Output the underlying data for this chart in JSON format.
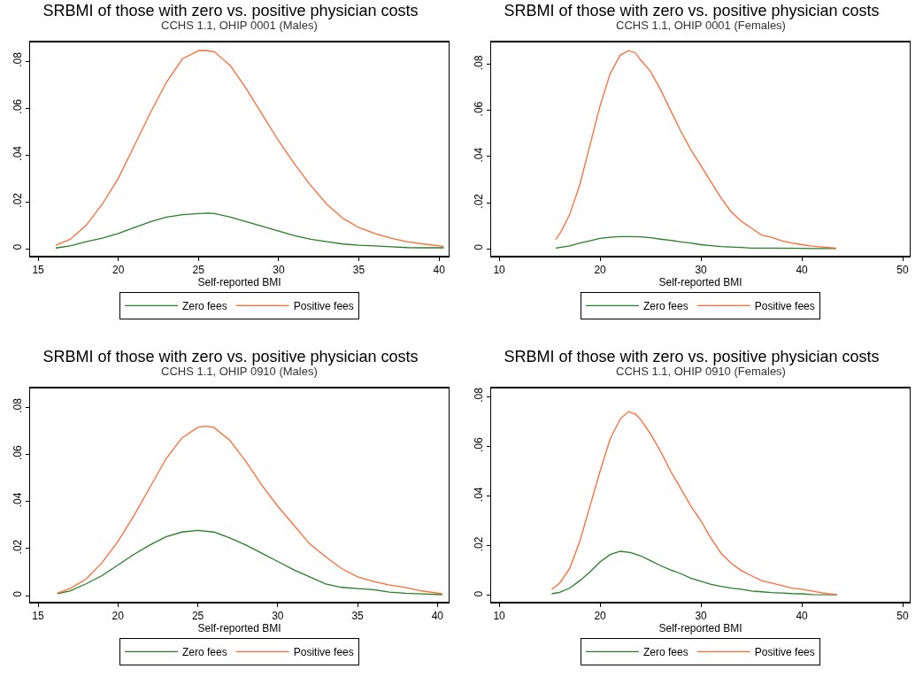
{
  "chart_data": [
    {
      "type": "line",
      "title": "SRBMI of those with zero vs. positive physician costs",
      "subtitle": "CCHS 1.1, OHIP 0001 (Males)",
      "xlabel": "Self-reported BMI",
      "xlim": [
        14.5,
        40.6
      ],
      "xticks": [
        15,
        20,
        25,
        30,
        35,
        40
      ],
      "ylim": [
        -0.003,
        0.088
      ],
      "yticks": [
        {
          "value": 0,
          "label": "0"
        },
        {
          "value": 0.02,
          "label": ".02"
        },
        {
          "value": 0.04,
          "label": ".04"
        },
        {
          "value": 0.06,
          "label": ".06"
        },
        {
          "value": 0.08,
          "label": ".08"
        }
      ],
      "grid": false,
      "legend": "bottom",
      "marker": "none",
      "line_style": "solid",
      "series": [
        {
          "name": "Zero fees",
          "color": "#267f26",
          "x": [
            16.1,
            17,
            18,
            19,
            20,
            21,
            22,
            23,
            24,
            25,
            25.6,
            26,
            27,
            28,
            29,
            30,
            31,
            32,
            33,
            34,
            35,
            36,
            37,
            38,
            39,
            40.3
          ],
          "values": [
            0.0003,
            0.0012,
            0.003,
            0.0045,
            0.0065,
            0.009,
            0.0115,
            0.0135,
            0.0145,
            0.015,
            0.0152,
            0.015,
            0.0135,
            0.0115,
            0.0095,
            0.0075,
            0.0055,
            0.004,
            0.003,
            0.002,
            0.0015,
            0.0012,
            0.0008,
            0.0005,
            0.0004,
            0.0004
          ]
        },
        {
          "name": "Positive fees",
          "color": "#ff6a33",
          "x": [
            16.1,
            17,
            18,
            19,
            20,
            21,
            22,
            23,
            24,
            25,
            25.5,
            26,
            27,
            28,
            29,
            30,
            31,
            32,
            33,
            34,
            35,
            36,
            37,
            38,
            39,
            40.3
          ],
          "values": [
            0.0015,
            0.004,
            0.01,
            0.019,
            0.03,
            0.044,
            0.058,
            0.071,
            0.081,
            0.0845,
            0.0845,
            0.084,
            0.078,
            0.068,
            0.057,
            0.046,
            0.036,
            0.027,
            0.019,
            0.013,
            0.009,
            0.0065,
            0.0045,
            0.003,
            0.002,
            0.001
          ]
        }
      ]
    },
    {
      "type": "line",
      "title": "SRBMI of those with zero vs. positive physician costs",
      "subtitle": "CCHS 1.1, OHIP 0001 (Females)",
      "xlabel": "Self-reported BMI",
      "xlim": [
        9.2,
        50.7
      ],
      "xticks": [
        10,
        20,
        30,
        40,
        50
      ],
      "ylim": [
        -0.003,
        0.0895
      ],
      "yticks": [
        {
          "value": 0,
          "label": "0"
        },
        {
          "value": 0.02,
          "label": ".02"
        },
        {
          "value": 0.04,
          "label": ".04"
        },
        {
          "value": 0.06,
          "label": ".06"
        },
        {
          "value": 0.08,
          "label": ".08"
        }
      ],
      "grid": false,
      "legend": "bottom",
      "marker": "none",
      "line_style": "solid",
      "series": [
        {
          "name": "Zero fees",
          "color": "#267f26",
          "x": [
            15.6,
            17,
            18,
            19,
            20,
            21,
            22,
            23,
            24,
            25,
            26,
            27,
            28,
            29,
            30,
            31,
            32,
            33,
            34,
            35,
            37,
            40,
            41,
            43.4
          ],
          "values": [
            0.0003,
            0.0013,
            0.0025,
            0.0035,
            0.0045,
            0.005,
            0.0053,
            0.0053,
            0.0052,
            0.0048,
            0.0042,
            0.0037,
            0.003,
            0.0025,
            0.0018,
            0.0014,
            0.001,
            0.0008,
            0.0006,
            0.0003,
            0.0003,
            0.0002,
            0.0001,
            0.0001
          ]
        },
        {
          "name": "Positive fees",
          "color": "#ff6a33",
          "x": [
            15.6,
            16.2,
            17,
            18,
            19,
            20,
            21,
            22,
            22.8,
            23.5,
            24,
            25,
            26,
            27,
            28,
            29,
            30,
            31,
            32,
            33,
            34,
            35,
            36,
            37,
            38,
            39,
            40,
            41,
            42,
            43.4
          ],
          "values": [
            0.004,
            0.008,
            0.015,
            0.028,
            0.045,
            0.062,
            0.076,
            0.084,
            0.086,
            0.085,
            0.082,
            0.077,
            0.069,
            0.06,
            0.051,
            0.043,
            0.036,
            0.029,
            0.022,
            0.016,
            0.012,
            0.009,
            0.006,
            0.005,
            0.0035,
            0.0025,
            0.0018,
            0.0012,
            0.0008,
            0.0003
          ]
        }
      ]
    },
    {
      "type": "line",
      "title": "SRBMI of those with zero vs. positive physician costs",
      "subtitle": "CCHS 1.1, OHIP 0910 (Males)",
      "xlabel": "Self-reported BMI",
      "xlim": [
        14.5,
        40.7
      ],
      "xticks": [
        15,
        20,
        25,
        30,
        35,
        40
      ],
      "ylim": [
        -0.0026,
        0.088
      ],
      "yticks": [
        {
          "value": 0,
          "label": "0"
        },
        {
          "value": 0.02,
          "label": ".02"
        },
        {
          "value": 0.04,
          "label": ".04"
        },
        {
          "value": 0.06,
          "label": ".06"
        },
        {
          "value": 0.08,
          "label": ".08"
        }
      ],
      "grid": false,
      "legend": "bottom",
      "marker": "none",
      "line_style": "solid",
      "series": [
        {
          "name": "Zero fees",
          "color": "#267f26",
          "x": [
            16.2,
            17,
            18,
            19,
            20,
            21,
            22,
            23,
            24,
            25,
            26,
            27,
            28,
            29,
            30,
            31,
            32,
            33,
            34,
            35,
            36,
            37,
            38,
            39,
            40.3
          ],
          "values": [
            0.0008,
            0.002,
            0.005,
            0.0085,
            0.013,
            0.0175,
            0.0215,
            0.025,
            0.027,
            0.0277,
            0.027,
            0.0245,
            0.0215,
            0.018,
            0.0145,
            0.011,
            0.008,
            0.005,
            0.0035,
            0.003,
            0.0025,
            0.0015,
            0.001,
            0.0007,
            0.0004
          ]
        },
        {
          "name": "Positive fees",
          "color": "#ff6a33",
          "x": [
            16.2,
            17,
            18,
            19,
            20,
            21,
            22,
            23,
            24,
            25,
            25.5,
            26,
            27,
            28,
            29,
            30,
            31,
            32,
            33,
            34,
            35,
            36,
            37,
            38,
            39,
            40.3
          ],
          "values": [
            0.001,
            0.003,
            0.007,
            0.014,
            0.023,
            0.034,
            0.046,
            0.058,
            0.067,
            0.0715,
            0.072,
            0.0715,
            0.066,
            0.057,
            0.047,
            0.038,
            0.03,
            0.022,
            0.0165,
            0.0115,
            0.008,
            0.006,
            0.0045,
            0.0035,
            0.002,
            0.0008
          ]
        }
      ]
    },
    {
      "type": "line",
      "title": "SRBMI of those with zero vs. positive physician costs",
      "subtitle": "CCHS 1.1, OHIP 0910 (Females)",
      "xlabel": "Self-reported BMI",
      "xlim": [
        9.2,
        50.7
      ],
      "xticks": [
        10,
        20,
        30,
        40,
        50
      ],
      "ylim": [
        -0.0025,
        0.0833
      ],
      "yticks": [
        {
          "value": 0,
          "label": "0"
        },
        {
          "value": 0.02,
          "label": ".02"
        },
        {
          "value": 0.04,
          "label": ".04"
        },
        {
          "value": 0.06,
          "label": ".06"
        },
        {
          "value": 0.08,
          "label": ".08"
        }
      ],
      "grid": false,
      "legend": "bottom",
      "marker": "none",
      "line_style": "solid",
      "series": [
        {
          "name": "Zero fees",
          "color": "#267f26",
          "x": [
            15.2,
            16,
            17,
            18,
            19,
            20,
            21,
            22,
            23,
            24,
            25,
            26,
            27,
            28,
            29,
            30,
            31,
            32,
            33,
            34,
            35,
            36,
            37,
            38,
            39,
            40,
            41,
            43.5
          ],
          "values": [
            0.0007,
            0.0013,
            0.003,
            0.006,
            0.0095,
            0.0135,
            0.0165,
            0.0178,
            0.0173,
            0.016,
            0.014,
            0.012,
            0.0103,
            0.0088,
            0.007,
            0.0057,
            0.0045,
            0.0037,
            0.003,
            0.0025,
            0.0018,
            0.0015,
            0.0012,
            0.001,
            0.0008,
            0.0007,
            0.0004,
            0.0003
          ]
        },
        {
          "name": "Positive fees",
          "color": "#ff6a33",
          "x": [
            15.2,
            16,
            17,
            18,
            19,
            20,
            21,
            22,
            22.8,
            23.5,
            24,
            25,
            26,
            27,
            28,
            29,
            30,
            31,
            32,
            33,
            34,
            35,
            36,
            37,
            38,
            39,
            40,
            41,
            42,
            43.5
          ],
          "values": [
            0.0025,
            0.005,
            0.011,
            0.022,
            0.036,
            0.05,
            0.063,
            0.071,
            0.074,
            0.073,
            0.071,
            0.065,
            0.058,
            0.05,
            0.043,
            0.036,
            0.03,
            0.023,
            0.017,
            0.013,
            0.01,
            0.008,
            0.006,
            0.005,
            0.004,
            0.003,
            0.0025,
            0.0018,
            0.0011,
            0.0003
          ]
        }
      ]
    }
  ]
}
